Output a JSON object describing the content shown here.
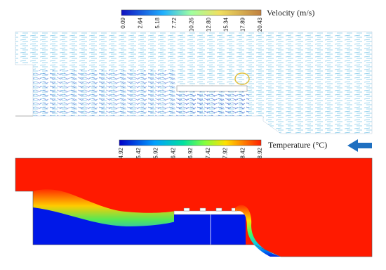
{
  "velocity_colorbar": {
    "label": "Velocity (m/s)",
    "ticks": [
      "0.09",
      "2.64",
      "5.18",
      "7.72",
      "10.26",
      "12.80",
      "15.34",
      "17.89",
      "20.43"
    ]
  },
  "temperature_colorbar": {
    "label": "Temperature (°C)",
    "ticks": [
      "4.92",
      "5.42",
      "5.92",
      "6.42",
      "6.92",
      "7.42",
      "7.92",
      "8.42",
      "8.92"
    ]
  }
}
